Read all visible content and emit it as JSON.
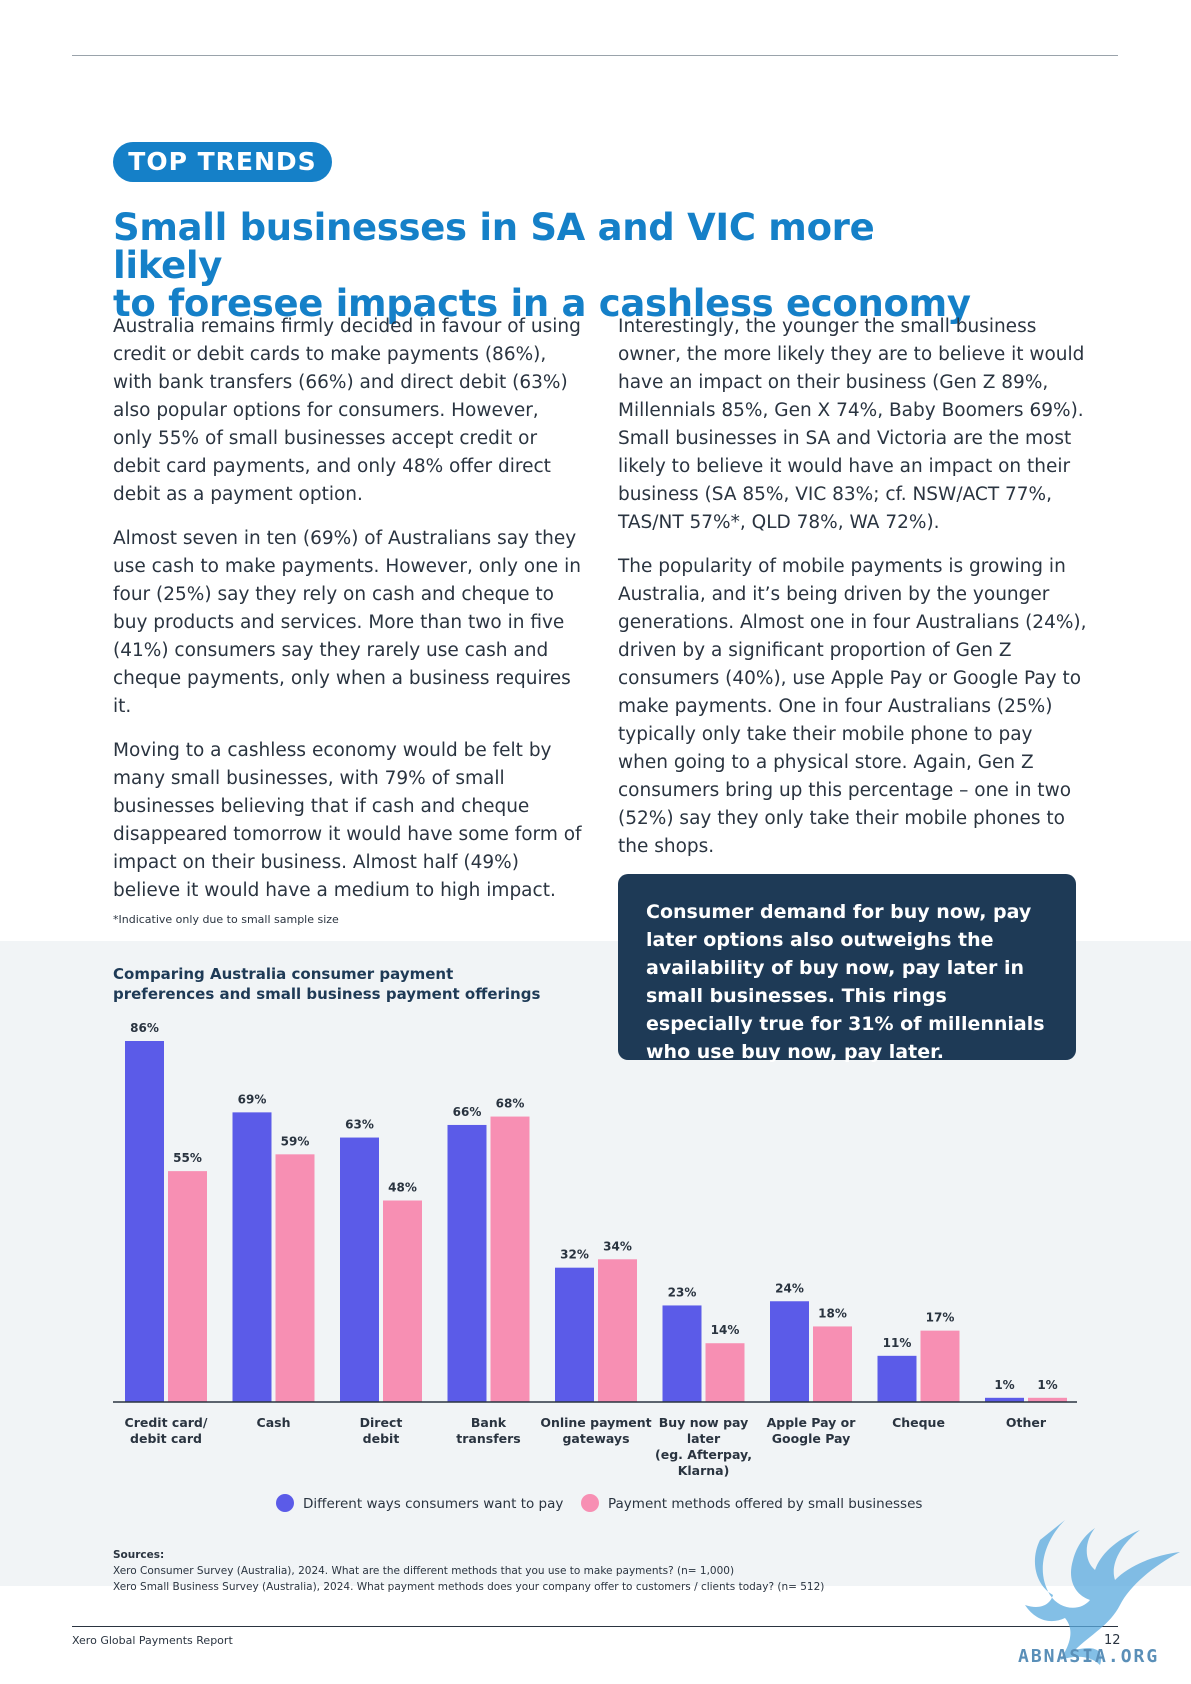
{
  "header": {
    "tag": "TOP TRENDS",
    "title_line1": "Small businesses in SA and VIC more likely",
    "title_line2": "to foresee impacts in a cashless economy"
  },
  "left_column": [
    "Australia remains firmly decided in favour of using credit or debit cards to make payments (86%), with bank transfers (66%) and direct debit (63%) also popular options for consumers. However, only 55% of small businesses accept credit or debit card payments, and only 48% offer direct debit as a payment option.",
    "Almost seven in ten (69%) of Australians say they use cash to make payments. However, only one in four (25%) say they rely on cash and cheque to buy products and services. More than two in five (41%) consumers say they rarely use cash and cheque payments, only when a business requires it.",
    "Moving to a cashless economy would be felt by many small businesses, with 79% of small businesses believing that if cash and cheque disappeared tomorrow it would have some form of impact on their business. Almost half (49%) believe it would have a medium to high impact."
  ],
  "right_column": [
    "Interestingly, the younger the small business owner, the more likely they are to believe it would have an impact on their business (Gen Z 89%, Millennials 85%, Gen X 74%, Baby Boomers 69%). Small businesses in SA and Victoria are the most likely to believe it would have an impact on their business (SA 85%, VIC 83%; cf. NSW/ACT 77%, TAS/NT 57%*, QLD 78%, WA 72%).",
    "The popularity of mobile payments is growing in Australia, and it’s being driven by the younger generations. Almost one in four Australians (24%), driven by a significant proportion of Gen Z consumers (40%), use Apple Pay or Google Pay to make payments. One in four Australians (25%) typically only take their mobile phone to pay when going to a physical store. Again, Gen Z consumers bring up this percentage – one in two (52%) say they only take their mobile phones to the shops."
  ],
  "footnote": "*Indicative only due to small sample size",
  "callout": "Consumer demand for buy now, pay later options also outweighs the availability of buy now, pay later in small businesses. This rings especially true for 31% of millennials who use buy now, pay later.",
  "chart_data": {
    "type": "bar",
    "title": "Comparing Australia consumer payment preferences and small business payment offerings",
    "categories": [
      [
        "Credit card/",
        "debit card"
      ],
      [
        "Cash"
      ],
      [
        "Direct",
        "debit"
      ],
      [
        "Bank",
        "transfers"
      ],
      [
        "Online payment",
        "gateways"
      ],
      [
        "Buy now pay",
        "later",
        "(eg. Afterpay,",
        "Klarna)"
      ],
      [
        "Apple Pay or",
        "Google Pay"
      ],
      [
        "Cheque"
      ],
      [
        "Other"
      ]
    ],
    "series": [
      {
        "name": "Different ways consumers want to pay",
        "color": "#5b5be8",
        "values": [
          86,
          69,
          63,
          66,
          32,
          23,
          24,
          11,
          1
        ]
      },
      {
        "name": "Payment methods offered by small businesses",
        "color": "#f78fb3",
        "values": [
          55,
          59,
          48,
          68,
          34,
          14,
          18,
          17,
          1
        ]
      }
    ],
    "value_suffix": "%",
    "ylim": [
      0,
      86
    ],
    "legend_position": "bottom",
    "grid": false
  },
  "sources": {
    "heading": "Sources:",
    "lines": [
      "Xero Consumer Survey (Australia), 2024. What are the different methods that you use to make payments? (n= 1,000)",
      "Xero Small Business Survey (Australia), 2024. What payment methods does your company offer to customers / clients today? (n= 512)"
    ]
  },
  "footer": {
    "left": "Xero Global Payments Report",
    "page": "12",
    "watermark": "ABNASIA.ORG"
  }
}
